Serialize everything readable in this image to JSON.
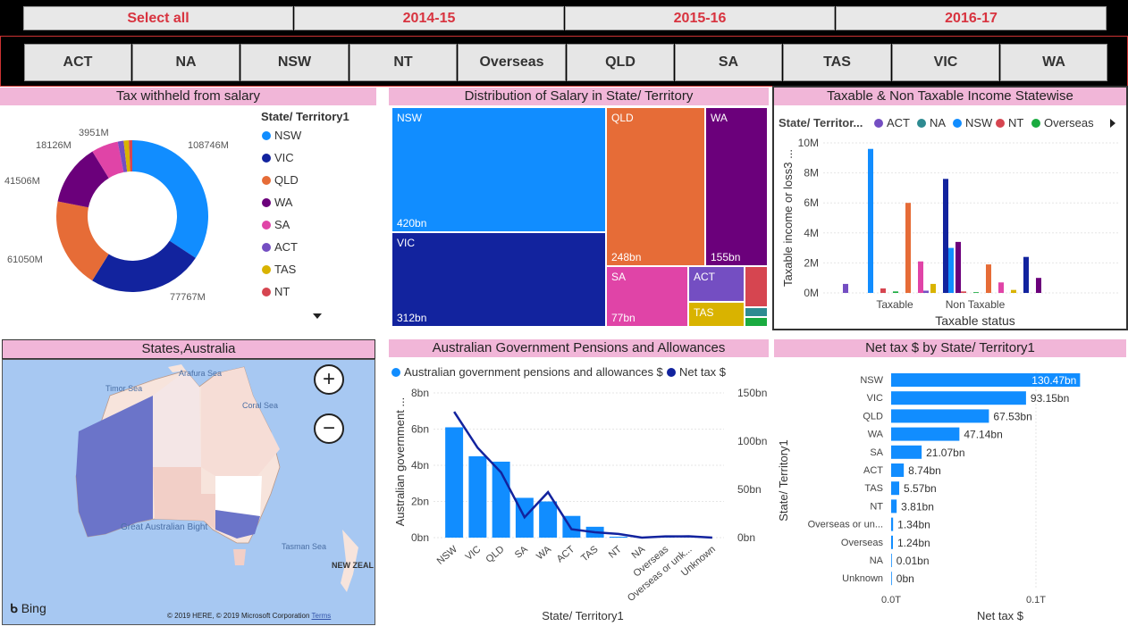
{
  "year_slicer": [
    "Select all",
    "2014-15",
    "2015-16",
    "2016-17"
  ],
  "state_slicer": [
    "ACT",
    "NA",
    "NSW",
    "NT",
    "Overseas",
    "QLD",
    "SA",
    "TAS",
    "VIC",
    "WA"
  ],
  "colors": {
    "NSW": "#118dff",
    "VIC": "#12239e",
    "QLD": "#e66c37",
    "WA": "#6b007b",
    "SA": "#e044a7",
    "ACT": "#744ec2",
    "TAS": "#d9b300",
    "NT": "#d64550",
    "Overseas": "#1aab40",
    "NA": "#2e8b91",
    "title_bg": "#f1b6d8",
    "slicer_text": "#d8333f"
  },
  "donut": {
    "title": "Tax withheld from salary",
    "legend_title": "State/ Territory1",
    "chart_data": {
      "type": "pie",
      "categories": [
        "NSW",
        "VIC",
        "QLD",
        "WA",
        "SA",
        "ACT",
        "TAS",
        "NT"
      ],
      "values": [
        108746,
        77767,
        61050,
        41506,
        18126,
        3951,
        3500,
        2300
      ],
      "value_labels": [
        "108746M",
        "77767M",
        "61050M",
        "41506M",
        "18126M",
        "3951M",
        "",
        ""
      ],
      "unit": "M"
    }
  },
  "treemap": {
    "title": "Distribution of Salary in State/ Territory",
    "chart_data": {
      "type": "treemap",
      "items": [
        {
          "name": "NSW",
          "value": 420,
          "label": "420bn"
        },
        {
          "name": "VIC",
          "value": 312,
          "label": "312bn"
        },
        {
          "name": "QLD",
          "value": 248,
          "label": "248bn"
        },
        {
          "name": "WA",
          "value": 155,
          "label": "155bn"
        },
        {
          "name": "SA",
          "value": 77,
          "label": "77bn"
        },
        {
          "name": "ACT",
          "value": null,
          "label": ""
        },
        {
          "name": "TAS",
          "value": null,
          "label": ""
        },
        {
          "name": "NT",
          "value": null,
          "label": ""
        }
      ]
    }
  },
  "taxable": {
    "title": "Taxable & Non Taxable Income Statewise",
    "legend_title": "State/ Territor...",
    "legend": [
      "ACT",
      "NA",
      "NSW",
      "NT",
      "Overseas"
    ],
    "chart_data": {
      "type": "bar",
      "categories": [
        "Taxable",
        "Non Taxable"
      ],
      "series": [
        {
          "name": "ACT",
          "values": [
            0.6,
            0.15
          ]
        },
        {
          "name": "NA",
          "values": [
            0.0,
            0.0
          ]
        },
        {
          "name": "NSW",
          "values": [
            9.6,
            3.0
          ]
        },
        {
          "name": "NT",
          "values": [
            0.3,
            0.1
          ]
        },
        {
          "name": "Overseas",
          "values": [
            0.1,
            0.05
          ]
        },
        {
          "name": "QLD",
          "values": [
            6.0,
            1.9
          ]
        },
        {
          "name": "SA",
          "values": [
            2.1,
            0.7
          ]
        },
        {
          "name": "TAS",
          "values": [
            0.6,
            0.2
          ]
        },
        {
          "name": "VIC",
          "values": [
            7.6,
            2.4
          ]
        },
        {
          "name": "WA",
          "values": [
            3.4,
            1.0
          ]
        }
      ],
      "yticks": [
        "0M",
        "2M",
        "4M",
        "6M",
        "8M",
        "10M"
      ],
      "ylim": [
        0,
        10
      ],
      "ylabel": "Taxable income or loss3 ...",
      "xlabel": "Taxable status"
    }
  },
  "map": {
    "title": "States,Australia",
    "labels": {
      "timor": "Timor Sea",
      "arafura": "Arafura Sea",
      "coral": "Coral Sea",
      "bight": "Great Australian Bight",
      "tasman": "Tasman Sea",
      "nz": "NEW ZEAL"
    },
    "bing": "Bing",
    "copyright": "© 2019 HERE, © 2019 Microsoft Corporation",
    "terms": "Terms",
    "zoom_in": "+",
    "zoom_out": "−"
  },
  "pensions": {
    "title": "Australian Government Pensions and Allowances",
    "legend": [
      "Australian government pensions and allowances $",
      "Net tax $"
    ],
    "chart_data": {
      "type": "bar",
      "categories": [
        "NSW",
        "VIC",
        "QLD",
        "SA",
        "WA",
        "ACT",
        "TAS",
        "NT",
        "NA",
        "Overseas",
        "Overseas or unk...",
        "Unknown"
      ],
      "series": [
        {
          "name": "Australian government pensions and allowances $",
          "values": [
            6.1,
            4.5,
            4.2,
            2.2,
            2.0,
            1.2,
            0.6,
            0.05,
            0,
            0.02,
            0.01,
            0
          ]
        },
        {
          "name": "Net tax $",
          "values": [
            130.47,
            93.15,
            67.53,
            21.07,
            47.14,
            8.74,
            5.57,
            3.81,
            0.01,
            1.24,
            1.34,
            0
          ]
        }
      ],
      "y_left_ticks": [
        "0bn",
        "2bn",
        "4bn",
        "6bn",
        "8bn"
      ],
      "y_right_ticks": [
        "0bn",
        "50bn",
        "100bn",
        "150bn"
      ],
      "ylabel": "Australian government ...",
      "xlabel": "State/ Territory1"
    }
  },
  "nettax": {
    "title": "Net tax $ by State/ Territory1",
    "chart_data": {
      "type": "bar",
      "categories": [
        "NSW",
        "VIC",
        "QLD",
        "WA",
        "SA",
        "ACT",
        "TAS",
        "NT",
        "Overseas or un...",
        "Overseas",
        "NA",
        "Unknown"
      ],
      "values": [
        130.47,
        93.15,
        67.53,
        47.14,
        21.07,
        8.74,
        5.57,
        3.81,
        1.34,
        1.24,
        0.01,
        0
      ],
      "value_labels": [
        "130.47bn",
        "93.15bn",
        "67.53bn",
        "47.14bn",
        "21.07bn",
        "8.74bn",
        "5.57bn",
        "3.81bn",
        "1.34bn",
        "1.24bn",
        "0.01bn",
        "0bn"
      ],
      "xticks": [
        "0.0T",
        "0.1T"
      ],
      "ylabel": "State/ Territory1",
      "xlabel": "Net tax $"
    }
  }
}
